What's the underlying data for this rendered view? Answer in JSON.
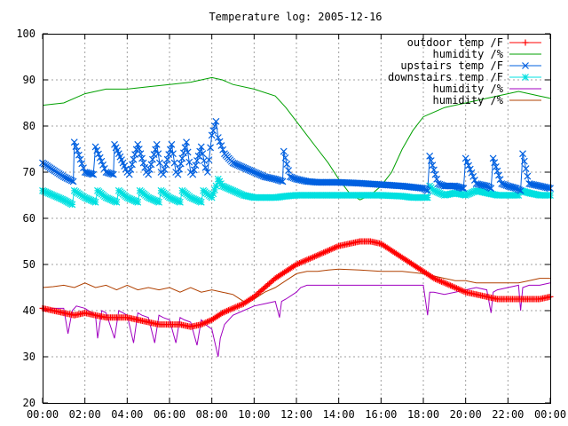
{
  "chart_data": {
    "type": "line",
    "title": "Temperature log: 2005-12-16",
    "xlabel": "",
    "ylabel": "",
    "x_ticks": [
      "00:00",
      "02:00",
      "04:00",
      "06:00",
      "08:00",
      "10:00",
      "12:00",
      "14:00",
      "16:00",
      "18:00",
      "20:00",
      "22:00",
      "00:00"
    ],
    "xlim_hours": [
      0,
      24
    ],
    "ylim": [
      20,
      100
    ],
    "y_ticks": [
      20,
      30,
      40,
      50,
      60,
      70,
      80,
      90,
      100
    ],
    "grid": true,
    "legend_position": "top-right",
    "series": [
      {
        "name": "outdoor temp /F",
        "color": "#ff0000",
        "marker": "plus",
        "x": [
          0,
          0.5,
          1,
          1.5,
          2,
          2.5,
          3,
          3.5,
          4,
          4.5,
          5,
          5.5,
          6,
          6.5,
          7,
          7.5,
          8,
          8.5,
          9,
          9.5,
          10,
          10.5,
          11,
          11.5,
          12,
          12.5,
          13,
          13.5,
          14,
          14.5,
          15,
          15.5,
          16,
          16.5,
          17,
          17.5,
          18,
          18.5,
          19,
          19.5,
          20,
          20.5,
          21,
          21.5,
          22,
          22.5,
          23,
          23.5,
          24
        ],
        "values": [
          40.5,
          40,
          39.5,
          39,
          39.5,
          39,
          38.5,
          38.5,
          38.5,
          38,
          37.5,
          37,
          37,
          37,
          36.5,
          37,
          38,
          39.5,
          40.5,
          41.5,
          43,
          45,
          47,
          48.5,
          50,
          51,
          52,
          53,
          54,
          54.5,
          55,
          55,
          54.5,
          53,
          51.5,
          50,
          48.5,
          47,
          46,
          45,
          44,
          43.5,
          43,
          42.5,
          42.5,
          42.5,
          42.5,
          42.5,
          43
        ]
      },
      {
        "name": "humidity /%",
        "color": "#00a000",
        "marker": "none",
        "x": [
          0,
          1,
          2,
          3,
          4,
          5,
          6,
          7,
          7.5,
          8,
          8.5,
          9,
          10,
          11,
          11.5,
          12,
          12.5,
          13,
          13.5,
          14,
          14.5,
          15,
          15.5,
          16,
          16.5,
          17,
          17.5,
          18,
          19,
          20,
          21,
          22,
          22.5,
          23,
          23.5,
          24
        ],
        "values": [
          84.5,
          85,
          87,
          88,
          88,
          88.5,
          89,
          89.5,
          90,
          90.5,
          90,
          89,
          88,
          86.5,
          84,
          81,
          78,
          75,
          72,
          68.5,
          65.5,
          64,
          65,
          67,
          70,
          75,
          79,
          82,
          84,
          85,
          86,
          87,
          87.5,
          87,
          86.5,
          86
        ]
      },
      {
        "name": "upstairs temp /F",
        "color": "#0060e0",
        "marker": "x",
        "x": [
          0,
          0.5,
          1,
          1.45,
          1.5,
          2,
          2.4,
          2.5,
          3,
          3.35,
          3.4,
          4,
          4.1,
          4.5,
          4.9,
          5,
          5.4,
          5.6,
          5.7,
          6.1,
          6.3,
          6.4,
          6.8,
          7,
          7.1,
          7.5,
          7.7,
          7.8,
          8,
          8.2,
          8.3,
          8.6,
          9,
          9.5,
          10,
          10.5,
          11,
          11.35,
          11.4,
          11.7,
          12,
          12.5,
          13,
          14,
          15,
          16,
          17,
          18,
          18.2,
          18.3,
          18.7,
          19,
          19.5,
          19.9,
          20,
          20.5,
          21,
          21.2,
          21.3,
          21.7,
          22,
          22.4,
          22.6,
          22.7,
          23,
          23.5,
          24
        ],
        "values": [
          72,
          70.5,
          69,
          68,
          76.5,
          70,
          69.5,
          75.5,
          70,
          69.5,
          76,
          70,
          69.5,
          76,
          70,
          69.5,
          76,
          70,
          69.5,
          76,
          70,
          69.5,
          76.5,
          70,
          69.5,
          75.5,
          71,
          70,
          78,
          81,
          77.5,
          74,
          72,
          71,
          70,
          69,
          68.5,
          68,
          74.5,
          69,
          68.5,
          68,
          67.8,
          67.8,
          67.6,
          67.3,
          67,
          66.5,
          66,
          73.5,
          67.5,
          67,
          67,
          66.5,
          73,
          67.5,
          67,
          66.5,
          73,
          67.5,
          67,
          66.5,
          66,
          74,
          67.5,
          67,
          66.5
        ]
      },
      {
        "name": "downstairs temp /F",
        "color": "#00e0e0",
        "marker": "star",
        "x": [
          0,
          0.5,
          1,
          1.4,
          1.5,
          2,
          2.5,
          2.6,
          3,
          3.5,
          3.6,
          4,
          4.5,
          4.6,
          5,
          5.5,
          5.6,
          6,
          6.5,
          6.6,
          7,
          7.5,
          7.6,
          8,
          8.2,
          8.3,
          8.5,
          9,
          9.5,
          10,
          10.5,
          11,
          11.5,
          12,
          13,
          14,
          15,
          16,
          17,
          17.5,
          18,
          18.2,
          18.3,
          18.5,
          19,
          19.5,
          20,
          20.5,
          21,
          21.5,
          22,
          22.5,
          22.6,
          23,
          23.5,
          24
        ],
        "values": [
          66,
          65,
          64,
          63,
          66,
          64.5,
          63.5,
          66,
          64.5,
          63.5,
          66,
          64.5,
          63.5,
          66,
          64.5,
          63.5,
          66,
          64.5,
          63.5,
          66,
          64.5,
          63.5,
          66,
          64.5,
          67,
          68.5,
          67,
          66,
          65,
          64.5,
          64.5,
          64.5,
          64.8,
          65,
          65,
          65,
          65,
          65,
          64.8,
          64.5,
          64.5,
          64.5,
          67,
          66,
          65,
          65.5,
          65,
          66,
          65.5,
          65,
          65,
          65,
          66,
          65.5,
          65,
          65
        ]
      },
      {
        "name": "humidity /%",
        "color": "#a000c0",
        "marker": "none",
        "x": [
          0,
          0.5,
          1,
          1.2,
          1.4,
          1.6,
          2,
          2.5,
          2.6,
          2.8,
          3,
          3.4,
          3.6,
          3.8,
          4,
          4.3,
          4.5,
          4.7,
          5,
          5.3,
          5.5,
          5.7,
          6,
          6.3,
          6.5,
          6.7,
          7,
          7.3,
          7.5,
          7.7,
          8,
          8.3,
          8.4,
          8.6,
          9,
          9.5,
          10,
          10.5,
          11,
          11.2,
          11.3,
          11.5,
          12,
          12.2,
          12.5,
          13,
          14,
          15,
          16,
          17,
          18,
          18.2,
          18.3,
          18.5,
          19,
          19.5,
          20,
          20.5,
          21,
          21.2,
          21.3,
          21.5,
          22,
          22.5,
          22.6,
          22.7,
          23,
          23.5,
          24
        ],
        "values": [
          40,
          40.5,
          40.5,
          35,
          40,
          41,
          40.5,
          39,
          34,
          40,
          39.5,
          34,
          40,
          39.5,
          39,
          33,
          39.5,
          39,
          38.5,
          33,
          39,
          38.5,
          38,
          33,
          38.5,
          38,
          37.5,
          32.5,
          38,
          37,
          36,
          30,
          34,
          37,
          39,
          40,
          41,
          41.5,
          42,
          38.5,
          42,
          42.5,
          44,
          45,
          45.5,
          45.5,
          45.5,
          45.5,
          45.5,
          45.5,
          45.5,
          39,
          44,
          44,
          43.5,
          44,
          44.5,
          45,
          44.5,
          39.5,
          44,
          44.5,
          45,
          45.5,
          40,
          45,
          45.5,
          45.5,
          46
        ]
      },
      {
        "name": "humidity /%",
        "color": "#b04000",
        "marker": "none",
        "x": [
          0,
          0.5,
          1,
          1.5,
          2,
          2.5,
          3,
          3.5,
          4,
          4.5,
          5,
          5.5,
          6,
          6.5,
          7,
          7.5,
          8,
          8.5,
          9,
          9.5,
          10,
          10.5,
          11,
          11.5,
          12,
          12.5,
          13,
          13.5,
          14,
          15,
          16,
          17,
          18,
          18.5,
          19,
          19.5,
          20,
          20.5,
          21,
          21.5,
          22,
          22.5,
          23,
          23.5,
          24
        ],
        "values": [
          45,
          45.2,
          45.5,
          45,
          46,
          45,
          45.5,
          44.5,
          45.5,
          44.5,
          45,
          44.5,
          45,
          44,
          45,
          44,
          44.5,
          44,
          43.5,
          42,
          42.5,
          44,
          45,
          46.5,
          48,
          48.5,
          48.5,
          48.8,
          49,
          48.8,
          48.5,
          48.5,
          48,
          47.5,
          47,
          46.5,
          46.5,
          46,
          46,
          46,
          46,
          46,
          46.5,
          47,
          47
        ]
      }
    ]
  }
}
